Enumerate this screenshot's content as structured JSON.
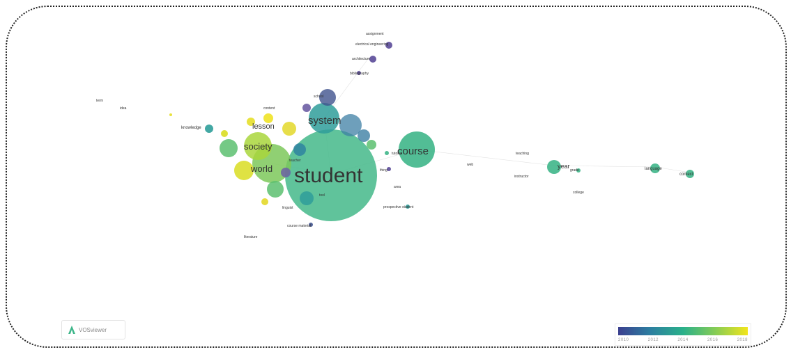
{
  "colors": {
    "purple": "#5a4a98",
    "indigo": "#40528d",
    "blue": "#3d7fa4",
    "teal": "#2f9e9a",
    "green": "#3fb68a",
    "lime": "#7cc85a",
    "yellow": "#d9dd22",
    "label": "#333333"
  },
  "logo": {
    "text": "VOSviewer",
    "icon": "vosviewer-logo-icon"
  },
  "legend": {
    "ticks": [
      "2010",
      "2012",
      "2014",
      "2016",
      "2018"
    ]
  },
  "labels": {
    "student": "student",
    "course": "course",
    "system": "system",
    "society": "society",
    "world": "world",
    "lesson": "lesson",
    "electrical_engineering": "electrical engineering",
    "architecture": "architecture",
    "bibliography": "bibliography",
    "tutorial": "tutorial",
    "year": "year",
    "prospective_student": "prospective student",
    "thing": "thing",
    "course_material": "course material",
    "college": "college",
    "language": "language",
    "knowledge": "knowledge",
    "web": "web",
    "grade": "grade",
    "teacher": "teacher",
    "linguist": "linguist",
    "literature": "literature",
    "tool": "tool",
    "area": "area",
    "idea": "idea",
    "term": "term",
    "school": "school",
    "context": "context",
    "assignment": "assignment",
    "teaching": "teaching",
    "instructor": "instructor",
    "content": "content"
  }
}
